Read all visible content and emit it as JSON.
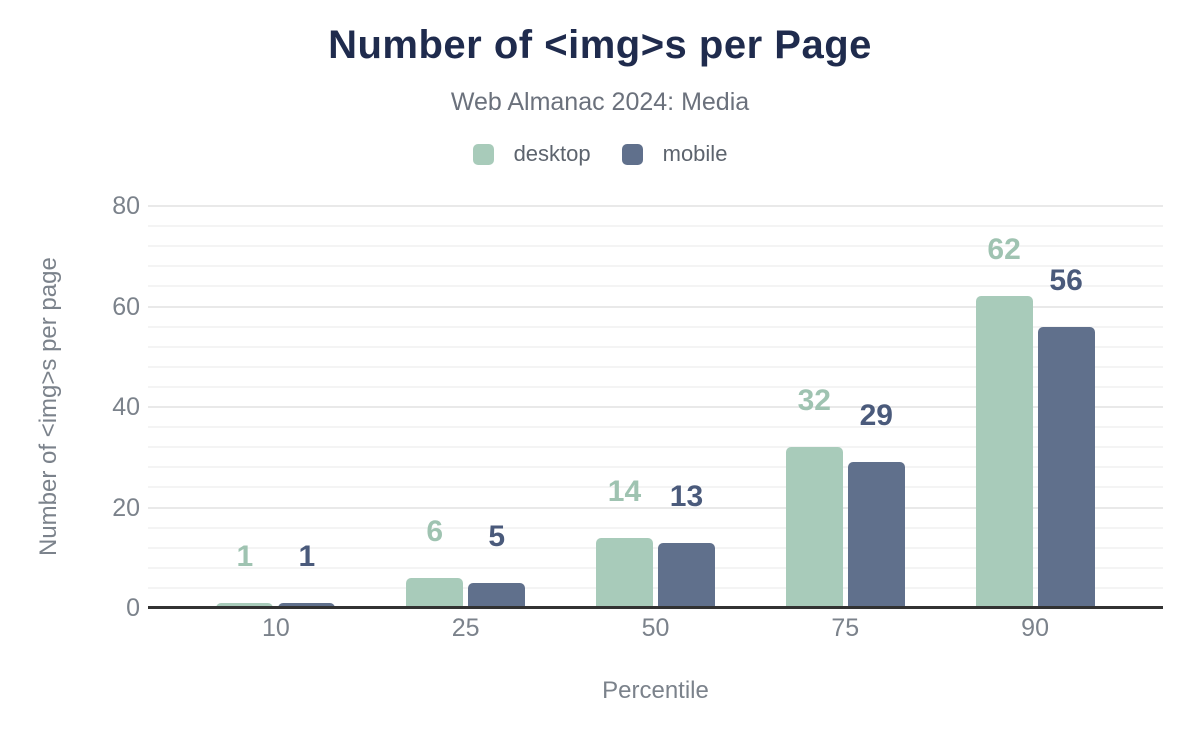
{
  "chart_data": {
    "type": "bar",
    "title": "Number of <img>s per Page",
    "subtitle": "Web Almanac 2024: Media",
    "categories": [
      "10",
      "25",
      "50",
      "75",
      "90"
    ],
    "series": [
      {
        "name": "desktop",
        "values": [
          1,
          6,
          14,
          32,
          62
        ],
        "color": "#a8cbba",
        "label_color": "#9fc3b1"
      },
      {
        "name": "mobile",
        "values": [
          1,
          5,
          13,
          29,
          56
        ],
        "color": "#60708c",
        "label_color": "#4a5a7b"
      }
    ],
    "xlabel": "Percentile",
    "ylabel": "Number of <img>s per page",
    "ylim": [
      0,
      80
    ],
    "y_ticks": [
      0,
      20,
      40,
      60,
      80
    ],
    "y_minor_step": 4,
    "grid": true,
    "legend_position": "top",
    "annotations": "values shown above each bar"
  },
  "colors": {
    "title": "#1f2b4d",
    "subtitle_text": "#6b717c",
    "axis_text": "#7b828b",
    "legend_text": "#5d646e",
    "axis_line": "#323232",
    "gridline_major": "#e9e9e9",
    "gridline_minor": "#f4f4f4",
    "background": "#ffffff"
  }
}
